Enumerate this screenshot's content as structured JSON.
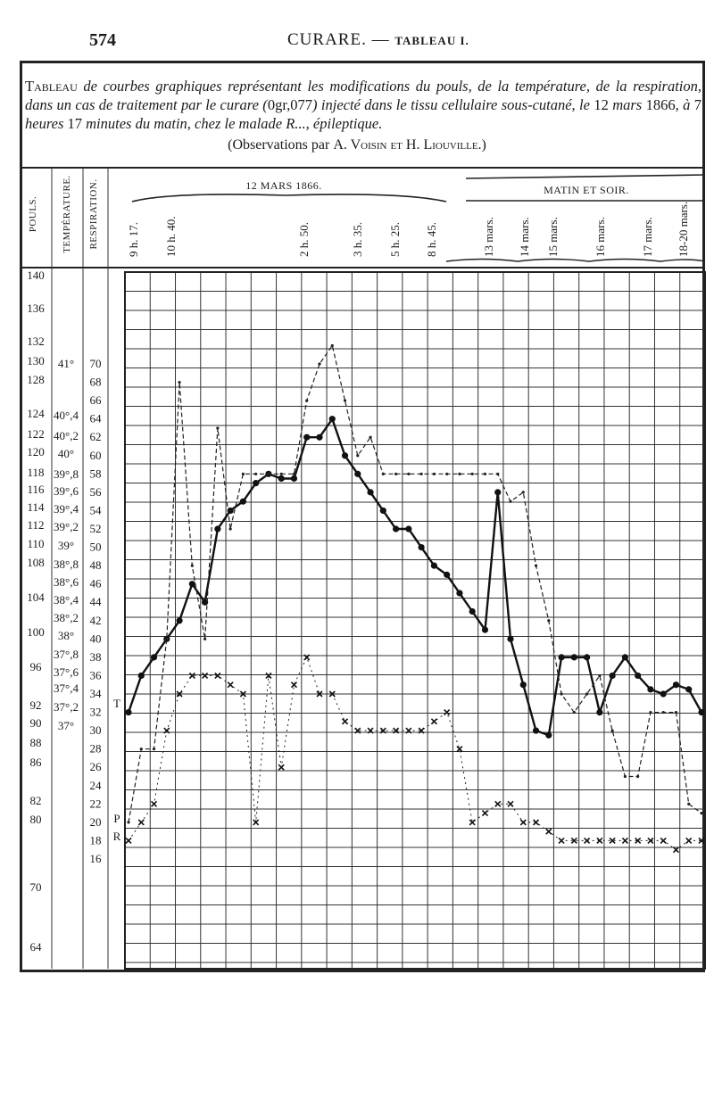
{
  "page": {
    "number": "574",
    "running_head": "CURARE.",
    "running_head_dash": " — ",
    "running_head_table": "TABLEAU I."
  },
  "caption": {
    "lead": "Tableau",
    "part1": " de courbes graphiques représentant les modifications du pouls, de la température, de la respiration, dans un cas de traitement par le curare (",
    "dose": "0gr,077",
    "part2": ") injecté dans le tissu cellulaire sous-cutané, le ",
    "date": "12",
    "part3": " mars ",
    "year": "1866",
    "part4": ", à ",
    "hour": "7",
    "part5": " heures ",
    "minutes": "17",
    "part6": " minutes du matin, chez le malade R..., épileptique.",
    "credit_prefix": "(Observations par ",
    "credit_names": "A. Voisin et H. Liouville",
    "credit_suffix": ".)"
  },
  "chart_data": {
    "type": "line",
    "column_headers": [
      "POULS.",
      "TEMPÉRATURE.",
      "RESPIRATION."
    ],
    "group_labels": [
      "12 MARS 1866.",
      "MATIN ET SOIR."
    ],
    "time_labels": [
      "9 h. 17.",
      "10 h. 40.",
      "2 h. 50.",
      "3 h. 35.",
      "5 h. 25.",
      "8 h. 45.",
      "13 mars.",
      "14 mars.",
      "15 mars.",
      "16 mars.",
      "17 mars.",
      "18-20 mars."
    ],
    "pulse_ticks": [
      "140",
      "136",
      "132",
      "130",
      "128",
      "124",
      "122",
      "120",
      "118",
      "116",
      "114",
      "112",
      "110",
      "108",
      "104",
      "100",
      "96",
      "92",
      "90",
      "88",
      "86",
      "82",
      "80",
      "70",
      "64"
    ],
    "temperature_ticks": [
      "41°",
      "40°,4",
      "40°,2",
      "40°",
      "39°,8",
      "39°,6",
      "39°,4",
      "39°,2",
      "39°",
      "38°,8",
      "38°,6",
      "38°,4",
      "38°,2",
      "38°",
      "37°,8",
      "37°,6",
      "37°,4",
      "37°,2",
      "37°"
    ],
    "respiration_ticks": [
      "70",
      "68",
      "66",
      "64",
      "62",
      "60",
      "58",
      "56",
      "54",
      "52",
      "50",
      "48",
      "46",
      "44",
      "42",
      "40",
      "38",
      "36",
      "34",
      "32",
      "30",
      "28",
      "26",
      "24",
      "22",
      "20",
      "18",
      "16"
    ],
    "series_markers": [
      "T",
      "P",
      "R"
    ],
    "respiration_axis": {
      "min": 16,
      "max": 70
    },
    "series": [
      {
        "name": "P",
        "style": "solid",
        "points": [
          [
            0,
            32
          ],
          [
            1,
            36
          ],
          [
            2,
            38
          ],
          [
            3,
            40
          ],
          [
            4,
            42
          ],
          [
            5,
            46
          ],
          [
            6,
            44
          ],
          [
            7,
            52
          ],
          [
            8,
            54
          ],
          [
            9,
            55
          ],
          [
            10,
            57
          ],
          [
            11,
            58
          ],
          [
            12,
            57.5
          ],
          [
            13,
            57.5
          ],
          [
            14,
            62
          ],
          [
            15,
            62
          ],
          [
            16,
            64
          ],
          [
            17,
            60
          ],
          [
            18,
            58
          ],
          [
            19,
            56
          ],
          [
            20,
            54
          ],
          [
            21,
            52
          ],
          [
            22,
            52
          ],
          [
            23,
            50
          ],
          [
            24,
            48
          ],
          [
            25,
            47
          ],
          [
            26,
            45
          ],
          [
            27,
            43
          ],
          [
            28,
            41
          ],
          [
            29,
            56
          ],
          [
            30,
            40
          ],
          [
            31,
            35
          ],
          [
            32,
            30
          ],
          [
            33,
            29.5
          ],
          [
            34,
            38
          ],
          [
            35,
            38
          ],
          [
            36,
            38
          ],
          [
            37,
            32
          ],
          [
            38,
            36
          ],
          [
            39,
            38
          ],
          [
            40,
            36
          ],
          [
            41,
            34.5
          ],
          [
            42,
            34
          ],
          [
            43,
            35
          ],
          [
            44,
            34.5
          ],
          [
            45,
            32
          ]
        ]
      },
      {
        "name": "T",
        "style": "dashed",
        "points": [
          [
            0,
            20
          ],
          [
            1,
            28
          ],
          [
            2,
            28
          ],
          [
            3,
            40
          ],
          [
            4,
            68
          ],
          [
            5,
            48
          ],
          [
            6,
            40
          ],
          [
            7,
            63
          ],
          [
            8,
            52
          ],
          [
            9,
            58
          ],
          [
            10,
            58
          ],
          [
            11,
            58
          ],
          [
            12,
            58
          ],
          [
            13,
            58
          ],
          [
            14,
            66
          ],
          [
            15,
            70
          ],
          [
            16,
            72
          ],
          [
            17,
            66
          ],
          [
            18,
            60
          ],
          [
            19,
            62
          ],
          [
            20,
            58
          ],
          [
            21,
            58
          ],
          [
            22,
            58
          ],
          [
            23,
            58
          ],
          [
            24,
            58
          ],
          [
            25,
            58
          ],
          [
            26,
            58
          ],
          [
            27,
            58
          ],
          [
            28,
            58
          ],
          [
            29,
            58
          ],
          [
            30,
            55
          ],
          [
            31,
            56
          ],
          [
            32,
            48
          ],
          [
            33,
            42
          ],
          [
            34,
            34
          ],
          [
            35,
            32
          ],
          [
            36,
            34
          ],
          [
            37,
            36
          ],
          [
            38,
            30
          ],
          [
            39,
            25
          ],
          [
            40,
            25
          ],
          [
            41,
            32
          ],
          [
            42,
            32
          ],
          [
            43,
            32
          ],
          [
            44,
            22
          ],
          [
            45,
            21
          ]
        ]
      },
      {
        "name": "R",
        "style": "crossed",
        "points": [
          [
            0,
            18
          ],
          [
            1,
            20
          ],
          [
            2,
            22
          ],
          [
            3,
            30
          ],
          [
            4,
            34
          ],
          [
            5,
            36
          ],
          [
            6,
            36
          ],
          [
            7,
            36
          ],
          [
            8,
            35
          ],
          [
            9,
            34
          ],
          [
            10,
            20
          ],
          [
            11,
            36
          ],
          [
            12,
            26
          ],
          [
            13,
            35
          ],
          [
            14,
            38
          ],
          [
            15,
            34
          ],
          [
            16,
            34
          ],
          [
            17,
            31
          ],
          [
            18,
            30
          ],
          [
            19,
            30
          ],
          [
            20,
            30
          ],
          [
            21,
            30
          ],
          [
            22,
            30
          ],
          [
            23,
            30
          ],
          [
            24,
            31
          ],
          [
            25,
            32
          ],
          [
            26,
            28
          ],
          [
            27,
            20
          ],
          [
            28,
            21
          ],
          [
            29,
            22
          ],
          [
            30,
            22
          ],
          [
            31,
            20
          ],
          [
            32,
            20
          ],
          [
            33,
            19
          ],
          [
            34,
            18
          ],
          [
            35,
            18
          ],
          [
            36,
            18
          ],
          [
            37,
            18
          ],
          [
            38,
            18
          ],
          [
            39,
            18
          ],
          [
            40,
            18
          ],
          [
            41,
            18
          ],
          [
            42,
            18
          ],
          [
            43,
            17
          ],
          [
            44,
            18
          ],
          [
            45,
            18
          ]
        ]
      }
    ]
  }
}
